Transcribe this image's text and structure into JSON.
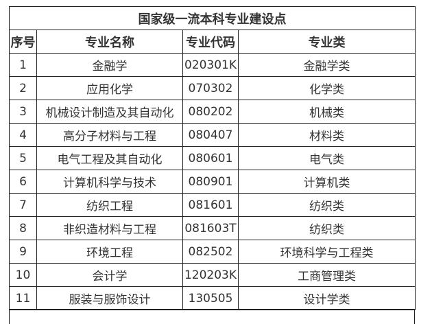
{
  "title": "国家级一流本科专业建设点",
  "headers": [
    "序号",
    "专业名称",
    "专业代码",
    "专业类"
  ],
  "rows": [
    [
      "1",
      "金融学",
      "020301K",
      "金融学类"
    ],
    [
      "2",
      "应用化学",
      "070302",
      "化学类"
    ],
    [
      "3",
      "机械设计制造及其自动化",
      "080202",
      "机械类"
    ],
    [
      "4",
      "高分子材料与工程",
      "080407",
      "材料类"
    ],
    [
      "5",
      "电气工程及其自动化",
      "080601",
      "电气类"
    ],
    [
      "6",
      "计算机科学与技术",
      "080901",
      "计算机类"
    ],
    [
      "7",
      "纺织工程",
      "081601",
      "纺织类"
    ],
    [
      "8",
      "非织造材料与工程",
      "081603T",
      "纺织类"
    ],
    [
      "9",
      "环境工程",
      "082502",
      "环境科学与工程类"
    ],
    [
      "10",
      "会计学",
      "120203K",
      "工商管理类"
    ],
    [
      "11",
      "服装与服饰设计",
      "130505",
      "设计学类"
    ]
  ]
}
